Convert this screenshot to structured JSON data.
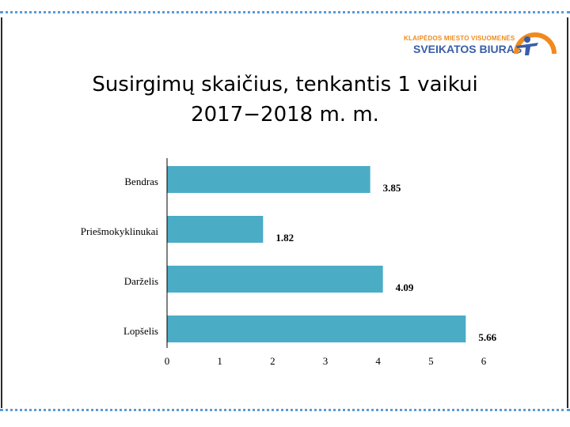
{
  "title_line1": "Susirgimų skaičius, tenkantis 1 vaikui",
  "title_line2": "2017−2018 m. m.",
  "logo": {
    "line1": "KLAIPĖDOS MIESTO VISUOMENĖS",
    "line2": "SVEIKATOS BIURAS",
    "icon": "figure-arc-logo-icon"
  },
  "colors": {
    "bar": "#4bacc6",
    "logo_orange": "#f08a1c",
    "logo_blue": "#3a5da8",
    "border_dots": "#5b9bd5"
  },
  "chart_data": {
    "type": "bar",
    "orientation": "horizontal",
    "categories": [
      "Bendras",
      "Priešmokyklinukai",
      "Darželis",
      "Lopšelis"
    ],
    "values": [
      3.85,
      1.82,
      4.09,
      5.66
    ],
    "value_labels": [
      "3.85",
      "1.82",
      "4.09",
      "5.66"
    ],
    "xlim": [
      0,
      6
    ],
    "xticks": [
      "0",
      "1",
      "2",
      "3",
      "4",
      "5",
      "6"
    ],
    "grid": false,
    "legend": "none"
  }
}
